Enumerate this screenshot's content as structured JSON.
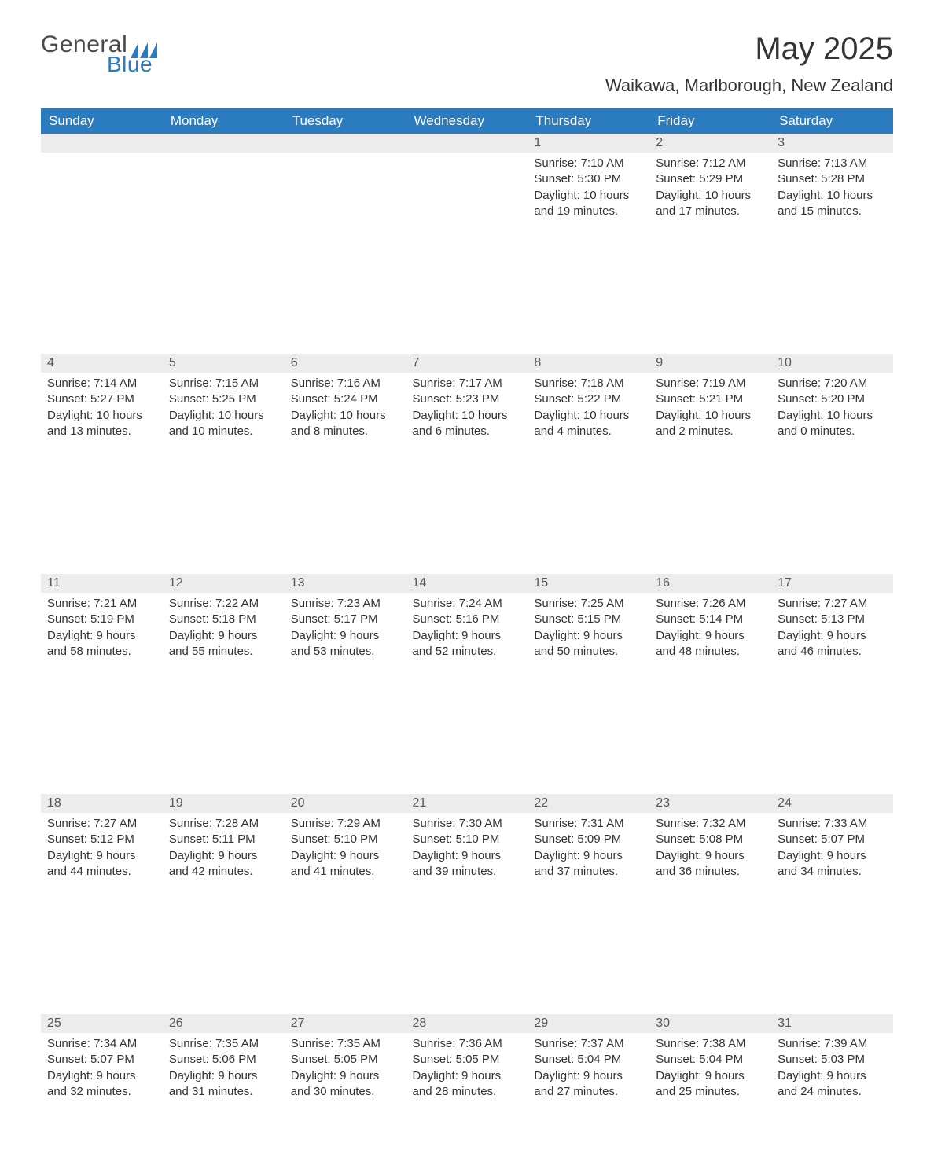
{
  "brand": {
    "text_general": "General",
    "text_blue": "Blue",
    "logo_color": "#2b7bbf",
    "text_color_gray": "#4a4a4a"
  },
  "header": {
    "month_title": "May 2025",
    "location": "Waikawa, Marlborough, New Zealand"
  },
  "styling": {
    "header_bg": "#2b7bbf",
    "header_text": "#ffffff",
    "daynum_bg": "#ececec",
    "week_border": "#2b7bbf",
    "body_text": "#333333",
    "page_bg": "#ffffff",
    "month_title_fontsize": 40,
    "location_fontsize": 22,
    "weekday_fontsize": 17,
    "daynum_fontsize": 16,
    "body_fontsize": 15
  },
  "weekdays": [
    "Sunday",
    "Monday",
    "Tuesday",
    "Wednesday",
    "Thursday",
    "Friday",
    "Saturday"
  ],
  "weeks": [
    [
      null,
      null,
      null,
      null,
      {
        "day": "1",
        "sunrise": "Sunrise: 7:10 AM",
        "sunset": "Sunset: 5:30 PM",
        "daylight1": "Daylight: 10 hours",
        "daylight2": "and 19 minutes."
      },
      {
        "day": "2",
        "sunrise": "Sunrise: 7:12 AM",
        "sunset": "Sunset: 5:29 PM",
        "daylight1": "Daylight: 10 hours",
        "daylight2": "and 17 minutes."
      },
      {
        "day": "3",
        "sunrise": "Sunrise: 7:13 AM",
        "sunset": "Sunset: 5:28 PM",
        "daylight1": "Daylight: 10 hours",
        "daylight2": "and 15 minutes."
      }
    ],
    [
      {
        "day": "4",
        "sunrise": "Sunrise: 7:14 AM",
        "sunset": "Sunset: 5:27 PM",
        "daylight1": "Daylight: 10 hours",
        "daylight2": "and 13 minutes."
      },
      {
        "day": "5",
        "sunrise": "Sunrise: 7:15 AM",
        "sunset": "Sunset: 5:25 PM",
        "daylight1": "Daylight: 10 hours",
        "daylight2": "and 10 minutes."
      },
      {
        "day": "6",
        "sunrise": "Sunrise: 7:16 AM",
        "sunset": "Sunset: 5:24 PM",
        "daylight1": "Daylight: 10 hours",
        "daylight2": "and 8 minutes."
      },
      {
        "day": "7",
        "sunrise": "Sunrise: 7:17 AM",
        "sunset": "Sunset: 5:23 PM",
        "daylight1": "Daylight: 10 hours",
        "daylight2": "and 6 minutes."
      },
      {
        "day": "8",
        "sunrise": "Sunrise: 7:18 AM",
        "sunset": "Sunset: 5:22 PM",
        "daylight1": "Daylight: 10 hours",
        "daylight2": "and 4 minutes."
      },
      {
        "day": "9",
        "sunrise": "Sunrise: 7:19 AM",
        "sunset": "Sunset: 5:21 PM",
        "daylight1": "Daylight: 10 hours",
        "daylight2": "and 2 minutes."
      },
      {
        "day": "10",
        "sunrise": "Sunrise: 7:20 AM",
        "sunset": "Sunset: 5:20 PM",
        "daylight1": "Daylight: 10 hours",
        "daylight2": "and 0 minutes."
      }
    ],
    [
      {
        "day": "11",
        "sunrise": "Sunrise: 7:21 AM",
        "sunset": "Sunset: 5:19 PM",
        "daylight1": "Daylight: 9 hours",
        "daylight2": "and 58 minutes."
      },
      {
        "day": "12",
        "sunrise": "Sunrise: 7:22 AM",
        "sunset": "Sunset: 5:18 PM",
        "daylight1": "Daylight: 9 hours",
        "daylight2": "and 55 minutes."
      },
      {
        "day": "13",
        "sunrise": "Sunrise: 7:23 AM",
        "sunset": "Sunset: 5:17 PM",
        "daylight1": "Daylight: 9 hours",
        "daylight2": "and 53 minutes."
      },
      {
        "day": "14",
        "sunrise": "Sunrise: 7:24 AM",
        "sunset": "Sunset: 5:16 PM",
        "daylight1": "Daylight: 9 hours",
        "daylight2": "and 52 minutes."
      },
      {
        "day": "15",
        "sunrise": "Sunrise: 7:25 AM",
        "sunset": "Sunset: 5:15 PM",
        "daylight1": "Daylight: 9 hours",
        "daylight2": "and 50 minutes."
      },
      {
        "day": "16",
        "sunrise": "Sunrise: 7:26 AM",
        "sunset": "Sunset: 5:14 PM",
        "daylight1": "Daylight: 9 hours",
        "daylight2": "and 48 minutes."
      },
      {
        "day": "17",
        "sunrise": "Sunrise: 7:27 AM",
        "sunset": "Sunset: 5:13 PM",
        "daylight1": "Daylight: 9 hours",
        "daylight2": "and 46 minutes."
      }
    ],
    [
      {
        "day": "18",
        "sunrise": "Sunrise: 7:27 AM",
        "sunset": "Sunset: 5:12 PM",
        "daylight1": "Daylight: 9 hours",
        "daylight2": "and 44 minutes."
      },
      {
        "day": "19",
        "sunrise": "Sunrise: 7:28 AM",
        "sunset": "Sunset: 5:11 PM",
        "daylight1": "Daylight: 9 hours",
        "daylight2": "and 42 minutes."
      },
      {
        "day": "20",
        "sunrise": "Sunrise: 7:29 AM",
        "sunset": "Sunset: 5:10 PM",
        "daylight1": "Daylight: 9 hours",
        "daylight2": "and 41 minutes."
      },
      {
        "day": "21",
        "sunrise": "Sunrise: 7:30 AM",
        "sunset": "Sunset: 5:10 PM",
        "daylight1": "Daylight: 9 hours",
        "daylight2": "and 39 minutes."
      },
      {
        "day": "22",
        "sunrise": "Sunrise: 7:31 AM",
        "sunset": "Sunset: 5:09 PM",
        "daylight1": "Daylight: 9 hours",
        "daylight2": "and 37 minutes."
      },
      {
        "day": "23",
        "sunrise": "Sunrise: 7:32 AM",
        "sunset": "Sunset: 5:08 PM",
        "daylight1": "Daylight: 9 hours",
        "daylight2": "and 36 minutes."
      },
      {
        "day": "24",
        "sunrise": "Sunrise: 7:33 AM",
        "sunset": "Sunset: 5:07 PM",
        "daylight1": "Daylight: 9 hours",
        "daylight2": "and 34 minutes."
      }
    ],
    [
      {
        "day": "25",
        "sunrise": "Sunrise: 7:34 AM",
        "sunset": "Sunset: 5:07 PM",
        "daylight1": "Daylight: 9 hours",
        "daylight2": "and 32 minutes."
      },
      {
        "day": "26",
        "sunrise": "Sunrise: 7:35 AM",
        "sunset": "Sunset: 5:06 PM",
        "daylight1": "Daylight: 9 hours",
        "daylight2": "and 31 minutes."
      },
      {
        "day": "27",
        "sunrise": "Sunrise: 7:35 AM",
        "sunset": "Sunset: 5:05 PM",
        "daylight1": "Daylight: 9 hours",
        "daylight2": "and 30 minutes."
      },
      {
        "day": "28",
        "sunrise": "Sunrise: 7:36 AM",
        "sunset": "Sunset: 5:05 PM",
        "daylight1": "Daylight: 9 hours",
        "daylight2": "and 28 minutes."
      },
      {
        "day": "29",
        "sunrise": "Sunrise: 7:37 AM",
        "sunset": "Sunset: 5:04 PM",
        "daylight1": "Daylight: 9 hours",
        "daylight2": "and 27 minutes."
      },
      {
        "day": "30",
        "sunrise": "Sunrise: 7:38 AM",
        "sunset": "Sunset: 5:04 PM",
        "daylight1": "Daylight: 9 hours",
        "daylight2": "and 25 minutes."
      },
      {
        "day": "31",
        "sunrise": "Sunrise: 7:39 AM",
        "sunset": "Sunset: 5:03 PM",
        "daylight1": "Daylight: 9 hours",
        "daylight2": "and 24 minutes."
      }
    ]
  ]
}
